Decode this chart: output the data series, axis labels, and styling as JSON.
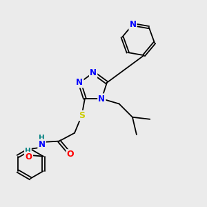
{
  "background_color": "#ebebeb",
  "bond_color": "#000000",
  "atom_colors": {
    "N": "#0000ff",
    "O": "#ff0000",
    "S": "#cccc00",
    "H": "#008080",
    "C": "#000000"
  },
  "font_size": 8.0
}
